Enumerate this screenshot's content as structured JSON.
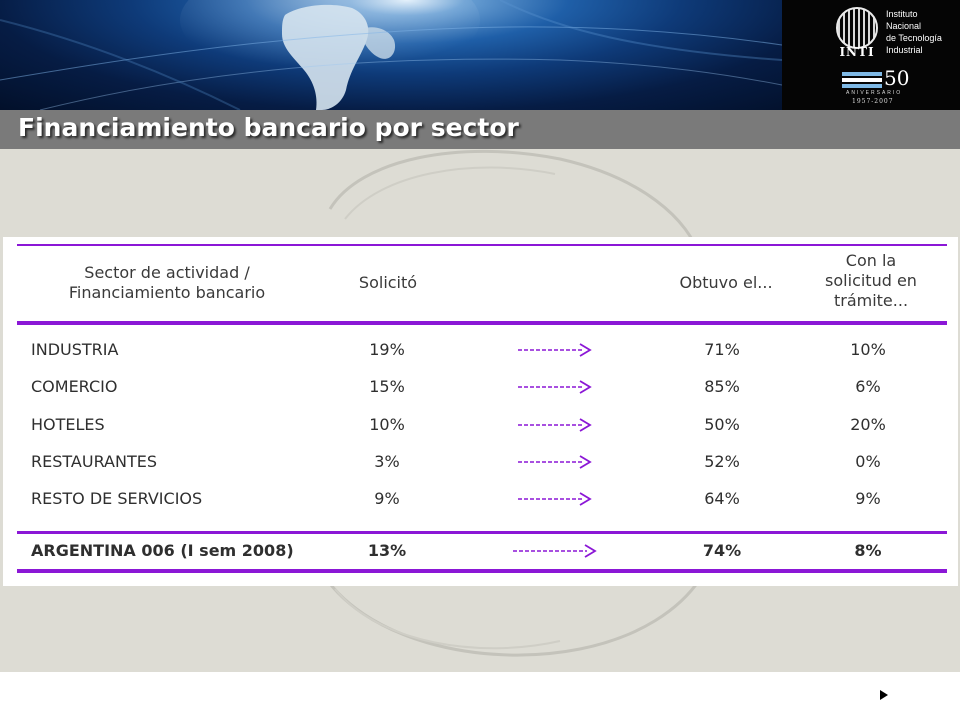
{
  "logo": {
    "name_lines": [
      "Instituto",
      "Nacional",
      "de Tecnología",
      "Industrial"
    ],
    "acronym": "INTI",
    "anniversary_number": "50",
    "anniversary_word": "ANIVERSARIO",
    "anniversary_years": "1957-2007"
  },
  "title": "Financiamiento bancario por sector",
  "table": {
    "headers": {
      "sector": [
        "Sector de actividad /",
        "Financiamiento bancario"
      ],
      "solicito": "Solicitó",
      "obtuvo": "Obtuvo el...",
      "tramite": [
        "Con la",
        "solicitud en",
        "trámite..."
      ]
    },
    "rows": [
      {
        "sector": "INDUSTRIA",
        "solicito": "19%",
        "obtuvo": "71%",
        "tramite": "10%"
      },
      {
        "sector": "COMERCIO",
        "solicito": "15%",
        "obtuvo": "85%",
        "tramite": "6%"
      },
      {
        "sector": "HOTELES",
        "solicito": "10%",
        "obtuvo": "50%",
        "tramite": "20%"
      },
      {
        "sector": "RESTAURANTES",
        "solicito": "3%",
        "obtuvo": "52%",
        "tramite": "0%"
      },
      {
        "sector": "RESTO DE SERVICIOS",
        "solicito": "9%",
        "obtuvo": "64%",
        "tramite": "9%"
      }
    ],
    "total": {
      "sector": "ARGENTINA 006 (I sem 2008)",
      "solicito": "13%",
      "obtuvo": "74%",
      "tramite": "8%"
    }
  },
  "colors": {
    "accent": "#8b17d6",
    "title_bar": "#7a7a7a",
    "background": "#dddcd4"
  },
  "icons": [
    "arrow-right-icon",
    "play-icon"
  ]
}
